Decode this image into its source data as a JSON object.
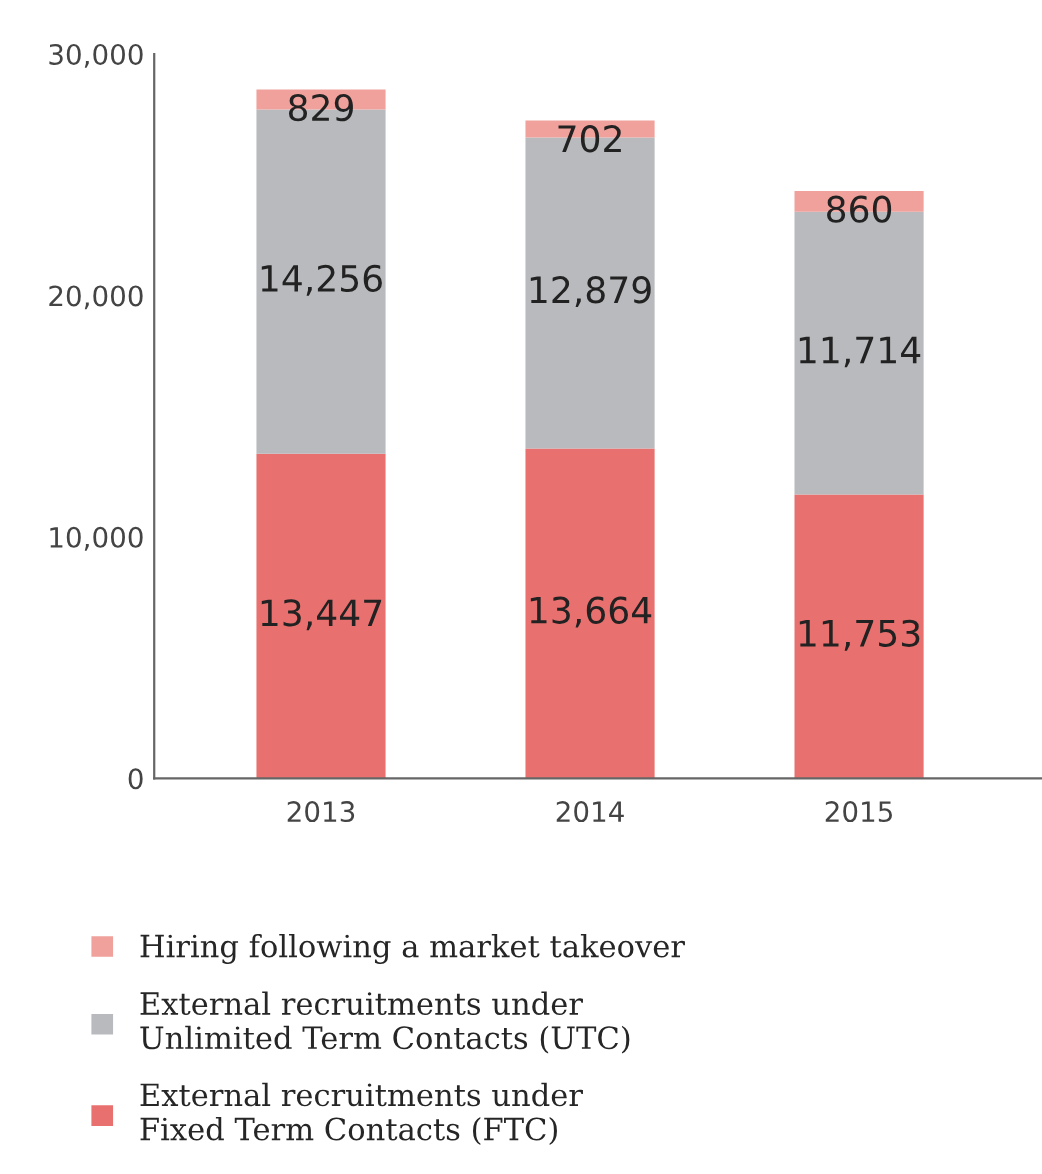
{
  "chart_data": {
    "type": "bar",
    "stacked": true,
    "categories": [
      "2013",
      "2014",
      "2015"
    ],
    "series": [
      {
        "name": "External recruitments under\nFixed Term Contacts (FTC)",
        "color": "#e8706e",
        "values": [
          13447,
          13664,
          11753
        ],
        "value_labels": [
          "13,447",
          "13,664",
          "11,753"
        ]
      },
      {
        "name": "External recruitments under\nUnlimited Term Contacts (UTC)",
        "color": "#b8babd",
        "values": [
          14256,
          12879,
          11714
        ],
        "value_labels": [
          "14,256",
          "12,879",
          "11,714"
        ]
      },
      {
        "name": "Hiring following a market takeover",
        "color": "#f0a19b",
        "values": [
          829,
          702,
          860
        ],
        "value_labels": [
          "829",
          "702",
          "860"
        ]
      }
    ],
    "ylim": [
      0,
      30000
    ],
    "yticks": [
      {
        "value": 0,
        "label": "0"
      },
      {
        "value": 10000,
        "label": "10,000"
      },
      {
        "value": 20000,
        "label": "20,000"
      },
      {
        "value": 30000,
        "label": "30,000"
      }
    ],
    "grid": false,
    "legend": "bottom"
  }
}
